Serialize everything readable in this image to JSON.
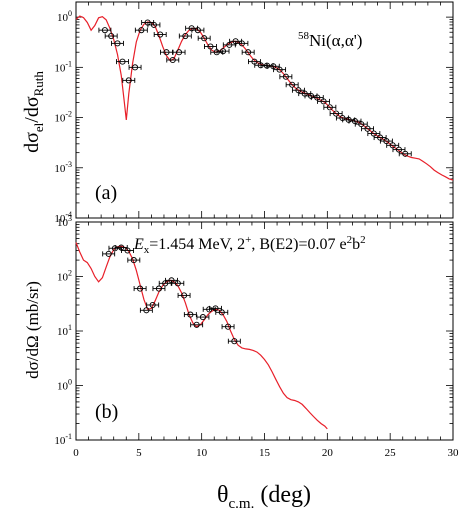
{
  "chart_data": [
    {
      "type": "scatter",
      "panel_label": "(a)",
      "annotation": {
        "sup": "58",
        "text": "Ni(α,α')"
      },
      "ylabel": {
        "main": "dσ",
        "sub1": "el",
        "mid": "/dσ",
        "sub2": "Ruth"
      },
      "yscale": "log",
      "ylim": [
        0.0001,
        2
      ],
      "xlim": [
        0,
        30
      ],
      "yticks": [
        {
          "value": 1,
          "base": "10",
          "exp": "0"
        },
        {
          "value": 0.1,
          "base": "10",
          "exp": "-1"
        },
        {
          "value": 0.01,
          "base": "10",
          "exp": "-2"
        },
        {
          "value": 0.001,
          "base": "10",
          "exp": "-3"
        },
        {
          "value": 0.0001,
          "base": "10",
          "exp": "-4"
        }
      ],
      "series": [
        {
          "kind": "theory",
          "color": "#e8202a",
          "points": [
            [
              0,
              0.9
            ],
            [
              0.3,
              1.05
            ],
            [
              0.6,
              0.98
            ],
            [
              0.9,
              0.78
            ],
            [
              1.2,
              0.55
            ],
            [
              1.5,
              0.68
            ],
            [
              1.8,
              0.97
            ],
            [
              2.1,
              1.02
            ],
            [
              2.4,
              0.88
            ],
            [
              2.7,
              0.6
            ],
            [
              3.0,
              0.36
            ],
            [
              3.3,
              0.18
            ],
            [
              3.6,
              0.07
            ],
            [
              3.8,
              0.025
            ],
            [
              4.0,
              0.009
            ],
            [
              4.2,
              0.03
            ],
            [
              4.5,
              0.12
            ],
            [
              4.8,
              0.32
            ],
            [
              5.1,
              0.55
            ],
            [
              5.4,
              0.72
            ],
            [
              5.7,
              0.8
            ],
            [
              6.0,
              0.78
            ],
            [
              6.3,
              0.65
            ],
            [
              6.6,
              0.43
            ],
            [
              6.9,
              0.26
            ],
            [
              7.2,
              0.17
            ],
            [
              7.5,
              0.135
            ],
            [
              7.8,
              0.15
            ],
            [
              8.1,
              0.22
            ],
            [
              8.4,
              0.33
            ],
            [
              8.7,
              0.45
            ],
            [
              9.0,
              0.55
            ],
            [
              9.3,
              0.6
            ],
            [
              9.6,
              0.58
            ],
            [
              9.9,
              0.5
            ],
            [
              10.2,
              0.38
            ],
            [
              10.5,
              0.28
            ],
            [
              10.8,
              0.22
            ],
            [
              11.1,
              0.2
            ],
            [
              11.4,
              0.21
            ],
            [
              11.7,
              0.24
            ],
            [
              12.0,
              0.28
            ],
            [
              12.3,
              0.31
            ],
            [
              12.6,
              0.33
            ],
            [
              12.9,
              0.32
            ],
            [
              13.2,
              0.28
            ],
            [
              13.5,
              0.23
            ],
            [
              13.8,
              0.18
            ],
            [
              14.1,
              0.145
            ],
            [
              14.4,
              0.125
            ],
            [
              14.7,
              0.115
            ],
            [
              15.0,
              0.11
            ],
            [
              15.3,
              0.108
            ],
            [
              15.6,
              0.105
            ],
            [
              15.9,
              0.1
            ],
            [
              16.2,
              0.09
            ],
            [
              16.5,
              0.075
            ],
            [
              16.8,
              0.06
            ],
            [
              17.1,
              0.048
            ],
            [
              17.4,
              0.04
            ],
            [
              17.7,
              0.035
            ],
            [
              18.0,
              0.032
            ],
            [
              18.3,
              0.03
            ],
            [
              18.6,
              0.028
            ],
            [
              18.9,
              0.026
            ],
            [
              19.2,
              0.024
            ],
            [
              19.5,
              0.022
            ],
            [
              19.8,
              0.02
            ],
            [
              20.1,
              0.017
            ],
            [
              20.4,
              0.014
            ],
            [
              20.7,
              0.012
            ],
            [
              21.0,
              0.0105
            ],
            [
              21.3,
              0.0098
            ],
            [
              21.6,
              0.0093
            ],
            [
              21.9,
              0.009
            ],
            [
              22.2,
              0.0085
            ],
            [
              22.5,
              0.008
            ],
            [
              22.8,
              0.0072
            ],
            [
              23.1,
              0.0063
            ],
            [
              23.4,
              0.0055
            ],
            [
              23.7,
              0.0048
            ],
            [
              24.0,
              0.0043
            ],
            [
              24.3,
              0.0039
            ],
            [
              24.6,
              0.0035
            ],
            [
              24.9,
              0.0031
            ],
            [
              25.2,
              0.0027
            ],
            [
              25.5,
              0.0024
            ],
            [
              25.8,
              0.0021
            ],
            [
              26.1,
              0.00185
            ],
            [
              26.4,
              0.0017
            ],
            [
              26.7,
              0.0016
            ],
            [
              27.0,
              0.00155
            ],
            [
              27.3,
              0.0015
            ],
            [
              27.6,
              0.00135
            ],
            [
              27.9,
              0.0012
            ],
            [
              28.2,
              0.00105
            ],
            [
              28.5,
              0.0009
            ],
            [
              28.8,
              0.0008
            ],
            [
              29.1,
              0.00072
            ],
            [
              29.4,
              0.00066
            ],
            [
              29.7,
              0.0006
            ],
            [
              30.0,
              0.00057
            ]
          ]
        },
        {
          "kind": "data",
          "points": [
            [
              2.3,
              0.55
            ],
            [
              2.8,
              0.42
            ],
            [
              3.3,
              0.3
            ],
            [
              3.7,
              0.13
            ],
            [
              4.2,
              0.055
            ],
            [
              4.7,
              0.1
            ],
            [
              5.2,
              0.55
            ],
            [
              5.7,
              0.78
            ],
            [
              6.2,
              0.7
            ],
            [
              6.7,
              0.45
            ],
            [
              7.2,
              0.2
            ],
            [
              7.7,
              0.14
            ],
            [
              8.2,
              0.2
            ],
            [
              8.7,
              0.42
            ],
            [
              9.2,
              0.6
            ],
            [
              9.7,
              0.55
            ],
            [
              10.2,
              0.38
            ],
            [
              10.7,
              0.26
            ],
            [
              11.2,
              0.2
            ],
            [
              11.7,
              0.21
            ],
            [
              12.2,
              0.28
            ],
            [
              12.7,
              0.33
            ],
            [
              13.2,
              0.3
            ],
            [
              13.7,
              0.2
            ],
            [
              14.2,
              0.13
            ],
            [
              14.7,
              0.11
            ],
            [
              15.2,
              0.108
            ],
            [
              15.7,
              0.105
            ],
            [
              16.2,
              0.09
            ],
            [
              16.7,
              0.065
            ],
            [
              17.2,
              0.045
            ],
            [
              17.7,
              0.035
            ],
            [
              18.2,
              0.03
            ],
            [
              18.7,
              0.027
            ],
            [
              19.2,
              0.025
            ],
            [
              19.7,
              0.021
            ],
            [
              20.2,
              0.016
            ],
            [
              20.7,
              0.012
            ],
            [
              21.2,
              0.0098
            ],
            [
              21.7,
              0.009
            ],
            [
              22.2,
              0.0085
            ],
            [
              22.7,
              0.0074
            ],
            [
              23.2,
              0.006
            ],
            [
              23.7,
              0.0048
            ],
            [
              24.2,
              0.004
            ],
            [
              24.7,
              0.0034
            ],
            [
              25.2,
              0.0028
            ],
            [
              25.7,
              0.0023
            ],
            [
              26.2,
              0.0019
            ]
          ]
        }
      ]
    },
    {
      "type": "scatter",
      "panel_label": "(b)",
      "annotation": {
        "e_main": "E",
        "e_sub": "x",
        "t1": "=1.454 MeV, 2",
        "sup1": "+",
        "t2": ", B(E2)=0.07 e",
        "sup2": "2",
        "t3": "b",
        "sup3": "2"
      },
      "ylabel": {
        "main": "dσ/dΩ (mb/sr)"
      },
      "yscale": "log",
      "ylim": [
        0.1,
        1000
      ],
      "xlim": [
        0,
        30
      ],
      "yticks": [
        {
          "value": 1000,
          "base": "10",
          "exp": "3"
        },
        {
          "value": 100,
          "base": "10",
          "exp": "2"
        },
        {
          "value": 10,
          "base": "10",
          "exp": "1"
        },
        {
          "value": 1,
          "base": "10",
          "exp": "0"
        },
        {
          "value": 0.1,
          "base": "10",
          "exp": "-1"
        }
      ],
      "xticks": [
        "0",
        "5",
        "10",
        "15",
        "20",
        "25",
        "30"
      ],
      "xlabel": {
        "main": "θ",
        "sub": "c.m.",
        "rest": " (deg)"
      },
      "series": [
        {
          "kind": "theory",
          "color": "#e8202a",
          "points": [
            [
              0,
              420
            ],
            [
              0.3,
              280
            ],
            [
              0.6,
              200
            ],
            [
              0.9,
              180
            ],
            [
              1.2,
              140
            ],
            [
              1.5,
              100
            ],
            [
              1.8,
              80
            ],
            [
              2.1,
              95
            ],
            [
              2.4,
              150
            ],
            [
              2.7,
              230
            ],
            [
              3.0,
              310
            ],
            [
              3.3,
              350
            ],
            [
              3.6,
              360
            ],
            [
              3.9,
              340
            ],
            [
              4.2,
              290
            ],
            [
              4.5,
              210
            ],
            [
              4.8,
              130
            ],
            [
              5.1,
              70
            ],
            [
              5.4,
              38
            ],
            [
              5.7,
              25
            ],
            [
              6.0,
              26
            ],
            [
              6.3,
              36
            ],
            [
              6.6,
              52
            ],
            [
              6.9,
              68
            ],
            [
              7.2,
              80
            ],
            [
              7.5,
              85
            ],
            [
              7.8,
              80
            ],
            [
              8.1,
              68
            ],
            [
              8.4,
              50
            ],
            [
              8.7,
              33
            ],
            [
              9.0,
              20
            ],
            [
              9.3,
              14
            ],
            [
              9.6,
              12
            ],
            [
              9.9,
              13
            ],
            [
              10.2,
              16
            ],
            [
              10.5,
              20
            ],
            [
              10.8,
              23
            ],
            [
              11.1,
              25
            ],
            [
              11.4,
              24
            ],
            [
              11.7,
              20
            ],
            [
              12.0,
              15
            ],
            [
              12.3,
              10
            ],
            [
              12.6,
              7
            ],
            [
              12.9,
              5.5
            ],
            [
              13.2,
              4.9
            ],
            [
              13.5,
              4.7
            ],
            [
              13.8,
              4.6
            ],
            [
              14.1,
              4.4
            ],
            [
              14.4,
              4.1
            ],
            [
              14.7,
              3.6
            ],
            [
              15.0,
              3.0
            ],
            [
              15.3,
              2.4
            ],
            [
              15.6,
              1.8
            ],
            [
              15.9,
              1.3
            ],
            [
              16.2,
              0.95
            ],
            [
              16.5,
              0.72
            ],
            [
              16.8,
              0.6
            ],
            [
              17.1,
              0.55
            ],
            [
              17.4,
              0.53
            ],
            [
              17.7,
              0.5
            ],
            [
              18.0,
              0.45
            ],
            [
              18.3,
              0.38
            ],
            [
              18.6,
              0.32
            ],
            [
              18.9,
              0.27
            ],
            [
              19.2,
              0.23
            ],
            [
              19.5,
              0.2
            ],
            [
              19.8,
              0.18
            ],
            [
              20.0,
              0.16
            ]
          ]
        },
        {
          "kind": "data",
          "points": [
            [
              2.6,
              260
            ],
            [
              3.1,
              330
            ],
            [
              3.6,
              340
            ],
            [
              4.1,
              300
            ],
            [
              4.6,
              200
            ],
            [
              5.1,
              60
            ],
            [
              5.6,
              24
            ],
            [
              6.1,
              30
            ],
            [
              6.6,
              60
            ],
            [
              7.1,
              75
            ],
            [
              7.6,
              85
            ],
            [
              8.1,
              75
            ],
            [
              8.6,
              45
            ],
            [
              9.1,
              20
            ],
            [
              9.6,
              13
            ],
            [
              10.1,
              18
            ],
            [
              10.6,
              25
            ],
            [
              11.1,
              26
            ],
            [
              11.6,
              22
            ],
            [
              12.1,
              12
            ],
            [
              12.6,
              6.5
            ]
          ]
        }
      ]
    }
  ]
}
